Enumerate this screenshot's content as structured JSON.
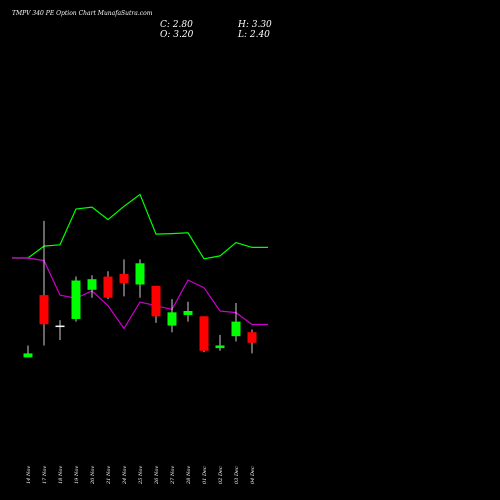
{
  "title": "TMPV 340  PE Option  Chart MunafaSutra.com",
  "ohlc": {
    "close": "C: 2.80",
    "high": "H: 3.30",
    "open": "O: 3.20",
    "low": "L: 2.40"
  },
  "chart_data": {
    "type": "candlestick",
    "title": "TMPV 340  PE Option  Chart MunafaSutra.com",
    "categories": [
      "14 Nov",
      "17 Nov",
      "18 Nov",
      "19 Nov",
      "20 Nov",
      "21 Nov",
      "24 Nov",
      "25 Nov",
      "26 Nov",
      "27 Nov",
      "28 Nov",
      "01 Dec",
      "02 Dec",
      "03 Dec",
      "04 Dec"
    ],
    "candles": [
      {
        "open": 2.25,
        "high": 2.7,
        "low": 2.25,
        "close": 2.4,
        "color": "green"
      },
      {
        "open": 4.6,
        "high": 7.4,
        "low": 2.7,
        "close": 3.5,
        "color": "red"
      },
      {
        "open": 3.4,
        "high": 3.65,
        "low": 2.9,
        "close": 3.45,
        "color": "white"
      },
      {
        "open": 3.7,
        "high": 5.3,
        "low": 3.6,
        "close": 5.15,
        "color": "green"
      },
      {
        "open": 4.8,
        "high": 5.35,
        "low": 4.5,
        "close": 5.2,
        "color": "green"
      },
      {
        "open": 5.3,
        "high": 5.5,
        "low": 4.45,
        "close": 4.5,
        "color": "red"
      },
      {
        "open": 5.4,
        "high": 5.95,
        "low": 4.55,
        "close": 5.05,
        "color": "red"
      },
      {
        "open": 5.0,
        "high": 5.95,
        "low": 4.5,
        "close": 5.8,
        "color": "green"
      },
      {
        "open": 4.95,
        "high": 4.95,
        "low": 3.55,
        "close": 3.8,
        "color": "red"
      },
      {
        "open": 3.45,
        "high": 4.45,
        "low": 3.2,
        "close": 3.95,
        "color": "green"
      },
      {
        "open": 3.85,
        "high": 4.35,
        "low": 3.6,
        "close": 4.0,
        "color": "green"
      },
      {
        "open": 3.8,
        "high": 3.8,
        "low": 2.45,
        "close": 2.5,
        "color": "red"
      },
      {
        "open": 2.6,
        "high": 3.1,
        "low": 2.5,
        "close": 2.7,
        "color": "green"
      },
      {
        "open": 3.05,
        "high": 4.3,
        "low": 2.85,
        "close": 3.6,
        "color": "green"
      },
      {
        "open": 3.2,
        "high": 3.3,
        "low": 2.4,
        "close": 2.8,
        "color": "red"
      }
    ],
    "indicator_lines": [
      {
        "color": "#00ff00",
        "x": [
          -1,
          0,
          1,
          2,
          3,
          4,
          5,
          6,
          7,
          8,
          9,
          10,
          11,
          12,
          13,
          14,
          15
        ],
        "values": [
          6.0,
          6.0,
          6.45,
          6.5,
          7.85,
          7.92,
          7.45,
          7.95,
          8.4,
          6.9,
          6.92,
          6.95,
          5.97,
          6.08,
          6.58,
          6.4,
          6.4
        ]
      },
      {
        "color": "#cc00cc",
        "x": [
          -1,
          0,
          1,
          2,
          3,
          4,
          5,
          6,
          7,
          8,
          9,
          10,
          11,
          12,
          13,
          14,
          15
        ],
        "values": [
          6.0,
          6.0,
          5.9,
          4.6,
          4.48,
          4.76,
          4.2,
          3.34,
          4.34,
          4.2,
          4.06,
          5.17,
          4.88,
          4.0,
          3.94,
          3.49,
          3.49
        ]
      }
    ],
    "ylim": [
      0,
      12
    ],
    "grid": false,
    "legend": "none"
  }
}
